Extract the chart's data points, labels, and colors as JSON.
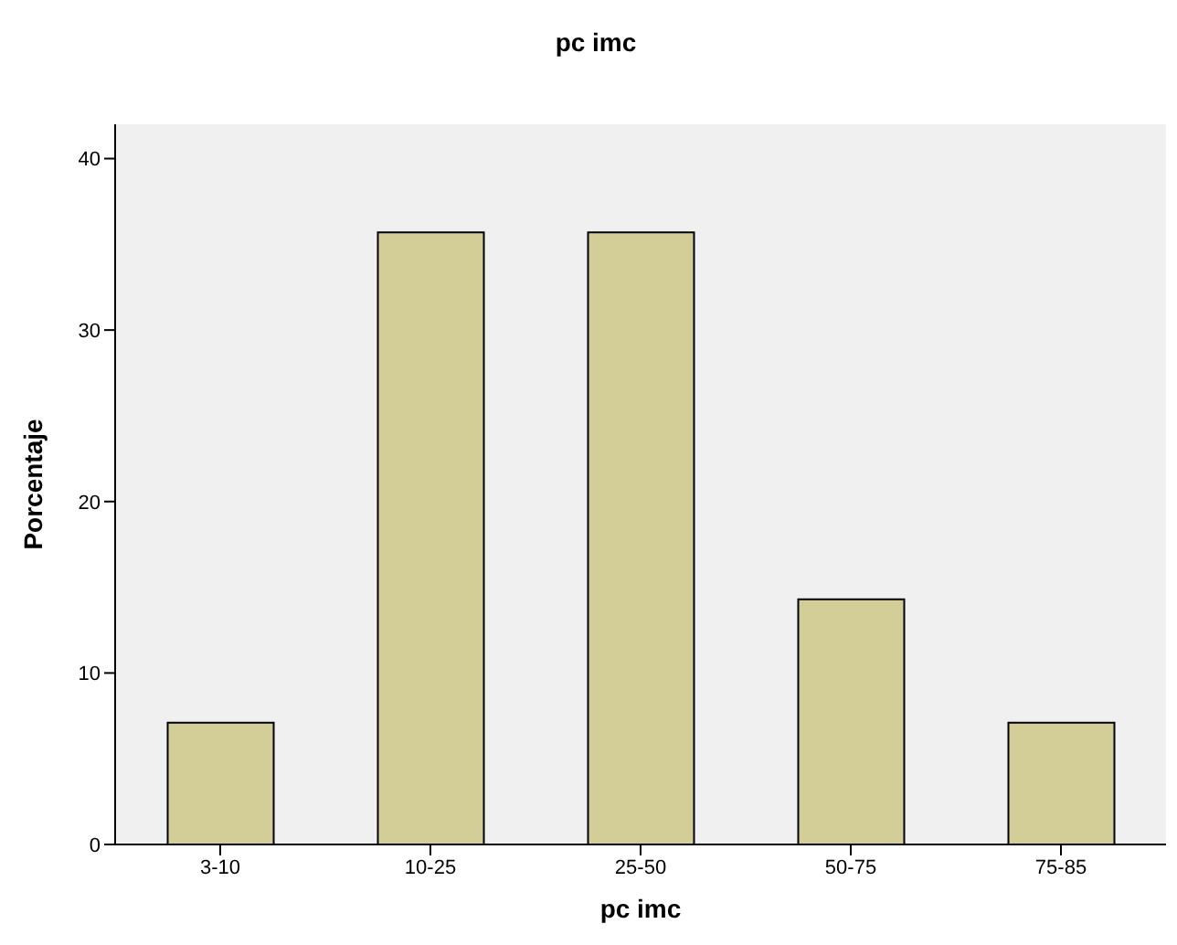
{
  "chart_data": {
    "type": "bar",
    "title": "pc imc",
    "xlabel": "pc imc",
    "ylabel": "Porcentaje",
    "categories": [
      "3-10",
      "10-25",
      "25-50",
      "50-75",
      "75-85"
    ],
    "values": [
      7.1,
      35.7,
      35.7,
      14.3,
      7.1
    ],
    "color": "#d3ce97",
    "ylim": [
      0,
      42
    ],
    "yticks": [
      0,
      10,
      20,
      30,
      40
    ],
    "grid": false,
    "legend": false
  }
}
